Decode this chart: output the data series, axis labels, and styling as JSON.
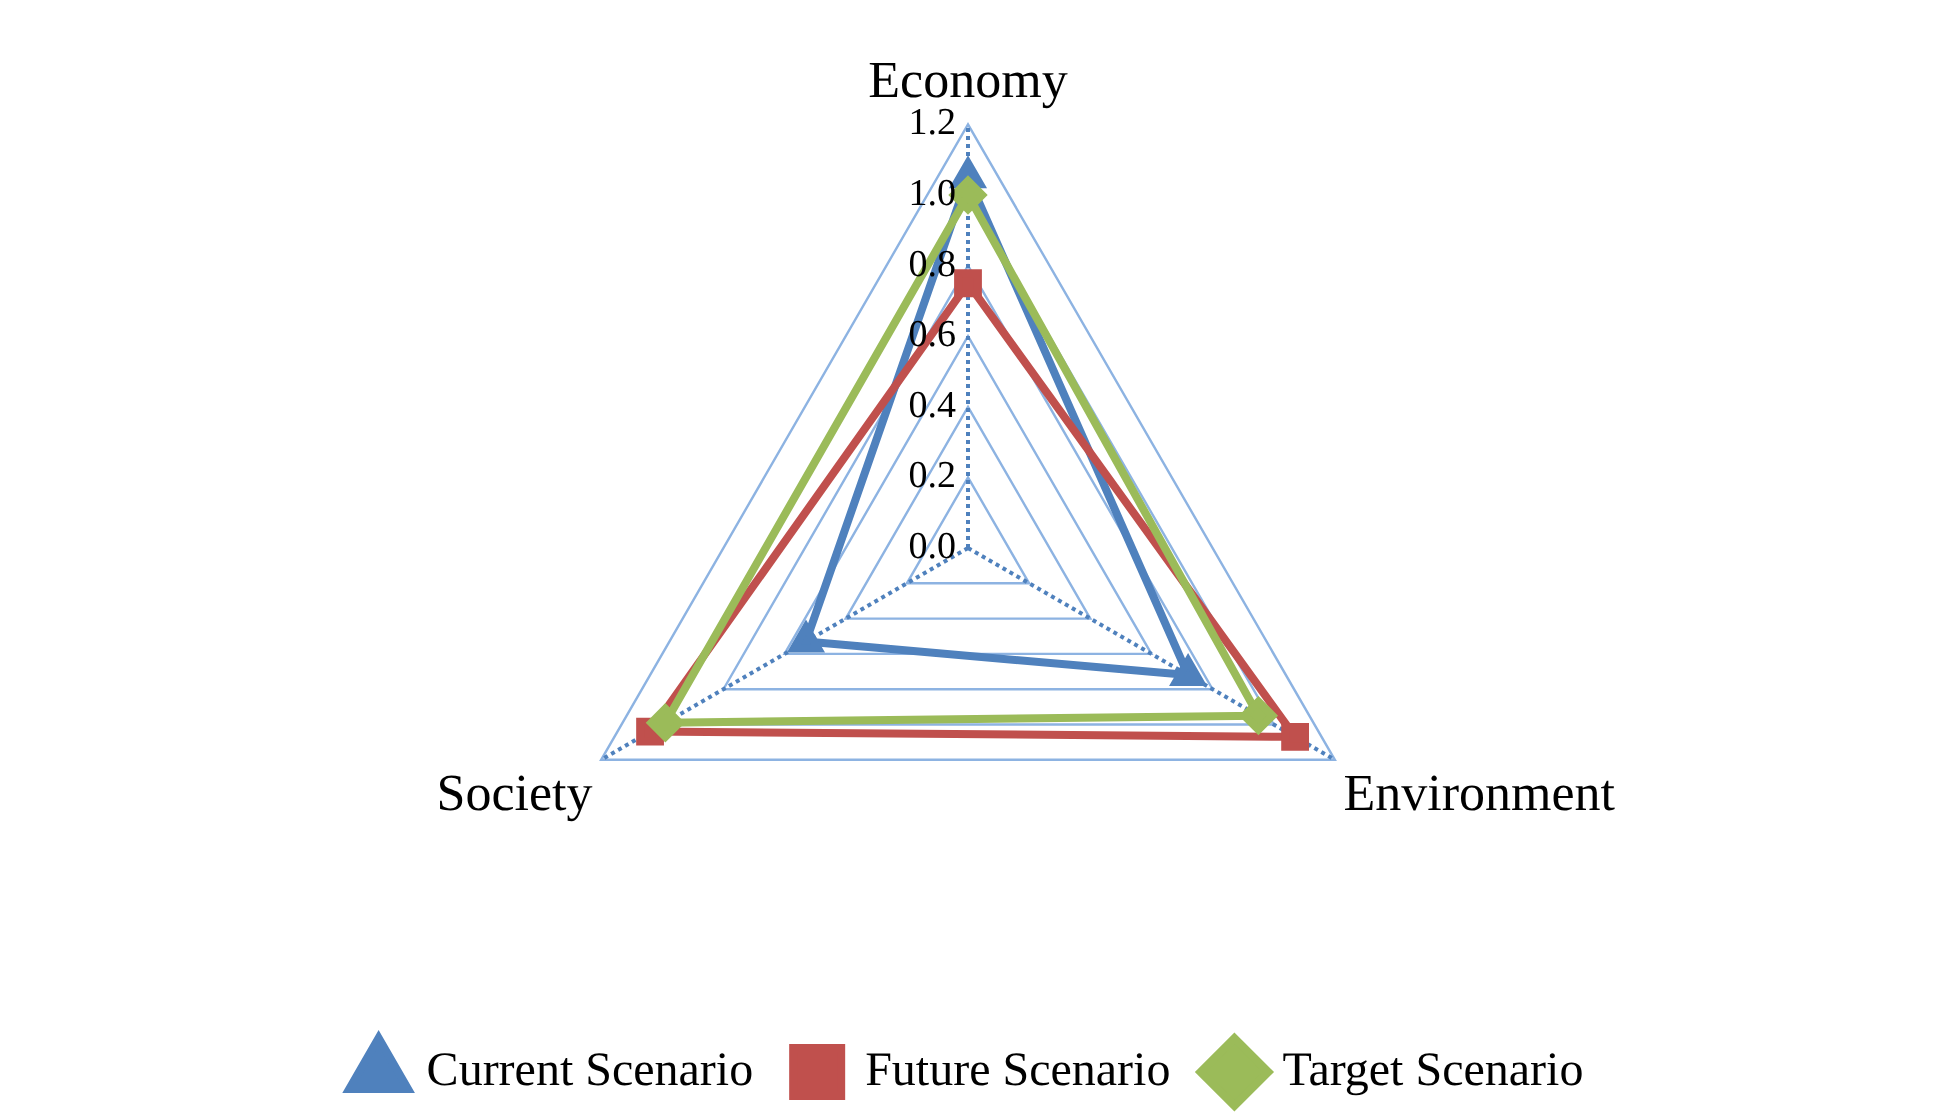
{
  "chart_data": {
    "type": "radar",
    "categories": [
      "Economy",
      "Environment",
      "Society"
    ],
    "series": [
      {
        "name": "Current Scenario",
        "color": "#4f81bd",
        "marker": "triangle",
        "values": [
          1.05,
          0.72,
          0.53
        ]
      },
      {
        "name": "Future Scenario",
        "color": "#c0504d",
        "marker": "square",
        "values": [
          0.75,
          1.07,
          1.04
        ]
      },
      {
        "name": "Target Scenario",
        "color": "#9bbb59",
        "marker": "diamond",
        "values": [
          1.0,
          0.95,
          0.99
        ]
      }
    ],
    "ylim": [
      0,
      1.2
    ],
    "yticks": [
      {
        "value": 0,
        "label": "0.0"
      },
      0.2,
      0.4,
      0.6,
      0.8,
      {
        "value": 1,
        "label": "1.0"
      },
      1.2
    ],
    "grid": true,
    "legend": "bottom"
  }
}
